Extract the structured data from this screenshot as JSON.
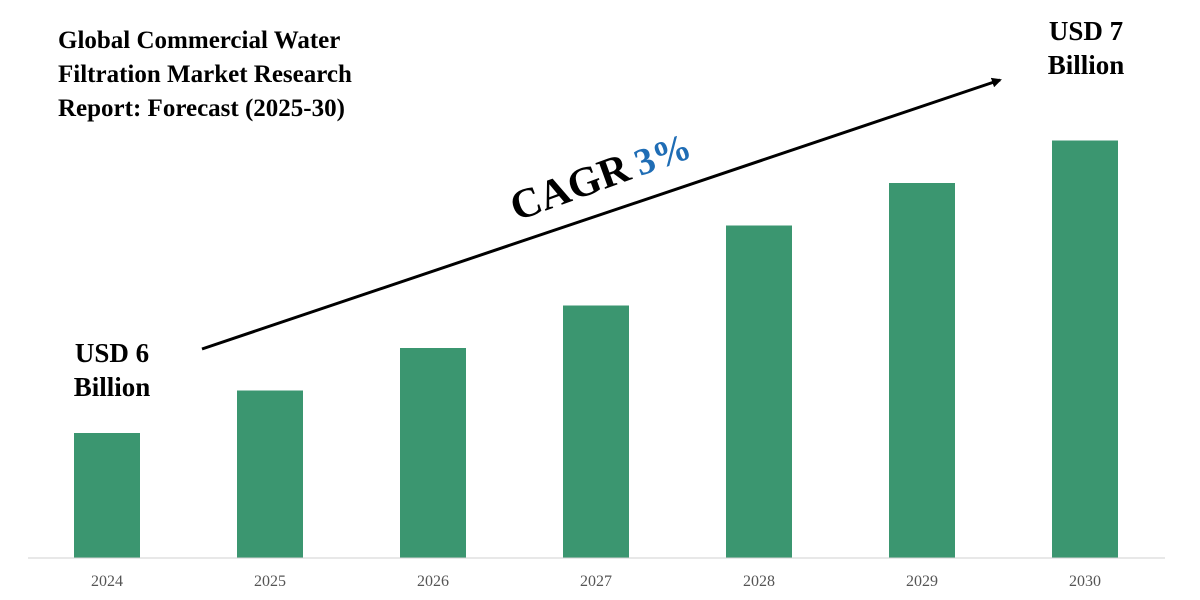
{
  "title": {
    "line1": "Global Commercial Water",
    "line2": "Filtration Market Research",
    "line3": "Report: Forecast (2025-30)"
  },
  "start_label": {
    "line1": "USD 6",
    "line2": "Billion"
  },
  "end_label": {
    "line1": "USD 7",
    "line2": "Billion"
  },
  "cagr": {
    "label": "CAGR",
    "value": "3%",
    "value_color": "#1f6db5"
  },
  "colors": {
    "bar": "#3b9670",
    "axis": "#d0d0d0",
    "tick_text": "#555555",
    "arrow": "#000000"
  },
  "chart_data": {
    "type": "bar",
    "title": "Global Commercial Water Filtration Market Research Report: Forecast (2025-30)",
    "categories": [
      "2024",
      "2025",
      "2026",
      "2027",
      "2028",
      "2029",
      "2030"
    ],
    "values": [
      25,
      33.5,
      42,
      50.5,
      66.5,
      75,
      83.5
    ],
    "value_unit": "relative bar height (y axis not shown)",
    "ylim": [
      0,
      100
    ],
    "xlabel": "",
    "ylabel": "",
    "grid": false,
    "annotations": [
      {
        "category": "2024",
        "text": "USD 6 Billion"
      },
      {
        "category": "2030",
        "text": "USD 7 Billion"
      },
      {
        "text": "CAGR 3%",
        "kind": "trend-arrow"
      }
    ]
  }
}
